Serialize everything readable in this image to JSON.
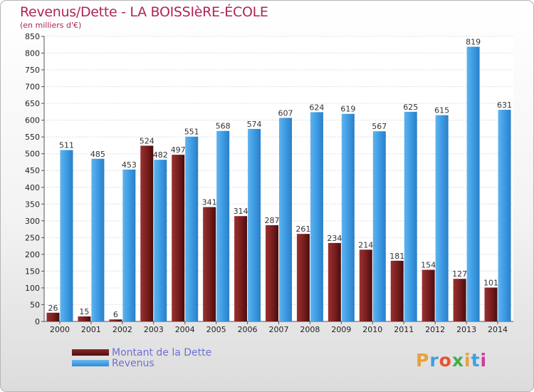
{
  "chart_data": {
    "type": "bar",
    "title": "Revenus/Dette - LA BOISSIèRE-ÉCOLE",
    "subtitle": "(en milliers d'€)",
    "categories": [
      "2000",
      "2001",
      "2002",
      "2003",
      "2004",
      "2005",
      "2006",
      "2007",
      "2008",
      "2009",
      "2010",
      "2011",
      "2012",
      "2013",
      "2014"
    ],
    "series": [
      {
        "name": "Montant de la Dette",
        "color": "#7a1f1f",
        "values": [
          26,
          15,
          6,
          524,
          497,
          341,
          314,
          287,
          261,
          234,
          214,
          181,
          154,
          127,
          101
        ]
      },
      {
        "name": "Revenus",
        "color": "#3d9be3",
        "values": [
          511,
          485,
          453,
          482,
          551,
          568,
          574,
          607,
          624,
          619,
          567,
          625,
          615,
          819,
          631
        ]
      }
    ],
    "ylim": [
      0,
      850
    ],
    "ytick_step": 50,
    "grid": true,
    "legend_position": "bottom-left"
  },
  "logo": {
    "text": "Proxiti",
    "colors": [
      "#e8a13a",
      "#3fa0e0",
      "#e8532b",
      "#3fb04a",
      "#e8a13a",
      "#3fa0e0",
      "#d03aa0"
    ]
  }
}
